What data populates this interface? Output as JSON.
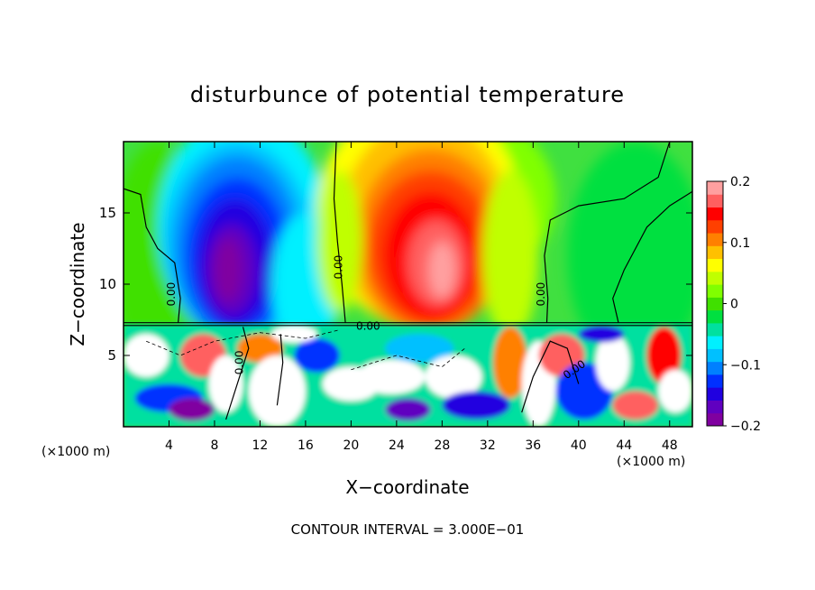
{
  "chart_data": {
    "type": "heatmap",
    "title": "disturbunce of potential temperature",
    "xlabel": "X−coordinate",
    "ylabel": "Z−coordinate",
    "x_unit": "(×1000 m)",
    "z_unit": "(×1000 m)",
    "footer": "CONTOUR INTERVAL = 3.000E−01",
    "xlim": [
      0,
      50
    ],
    "ylim": [
      0,
      20
    ],
    "x_ticks": [
      4,
      8,
      12,
      16,
      20,
      24,
      28,
      32,
      36,
      40,
      44,
      48
    ],
    "y_ticks": [
      5,
      10,
      15
    ],
    "colorbar": {
      "range": [
        -0.2,
        0.2
      ],
      "ticks": [
        {
          "value": 0.2,
          "label": "0.2"
        },
        {
          "value": 0.1,
          "label": "0.1"
        },
        {
          "value": 0,
          "label": "0"
        },
        {
          "value": -0.1,
          "label": "−0.1"
        },
        {
          "value": -0.2,
          "label": "−0.2"
        }
      ],
      "colors": [
        "#8000a0",
        "#6000c0",
        "#2000e0",
        "#0030ff",
        "#0080ff",
        "#00c0ff",
        "#00f0ff",
        "#00e0a0",
        "#00e040",
        "#40e000",
        "#80ff00",
        "#c0ff00",
        "#ffff00",
        "#ffc000",
        "#ff8000",
        "#ff4000",
        "#ff0000",
        "#ff6060",
        "#ffa0a0"
      ]
    },
    "contour_labels": [
      {
        "x": 4.5,
        "z": 9.3,
        "text": "0.00",
        "angle": -90
      },
      {
        "x": 19.2,
        "z": 11.2,
        "text": "0.00",
        "angle": -90
      },
      {
        "x": 21.5,
        "z": 6.8,
        "text": "0.00",
        "angle": 0
      },
      {
        "x": 37.0,
        "z": 9.3,
        "text": "0.00",
        "angle": -90
      },
      {
        "x": 10.5,
        "z": 4.5,
        "text": "0.00",
        "angle": -90
      },
      {
        "x": 39.8,
        "z": 3.8,
        "text": "0.00",
        "angle": -35
      }
    ],
    "features": [
      {
        "name": "cold anomaly upper",
        "x": 9.5,
        "z": 11.5,
        "value": -0.2
      },
      {
        "name": "warm anomaly upper",
        "x": 27,
        "z": 12,
        "value": 0.2
      }
    ]
  }
}
